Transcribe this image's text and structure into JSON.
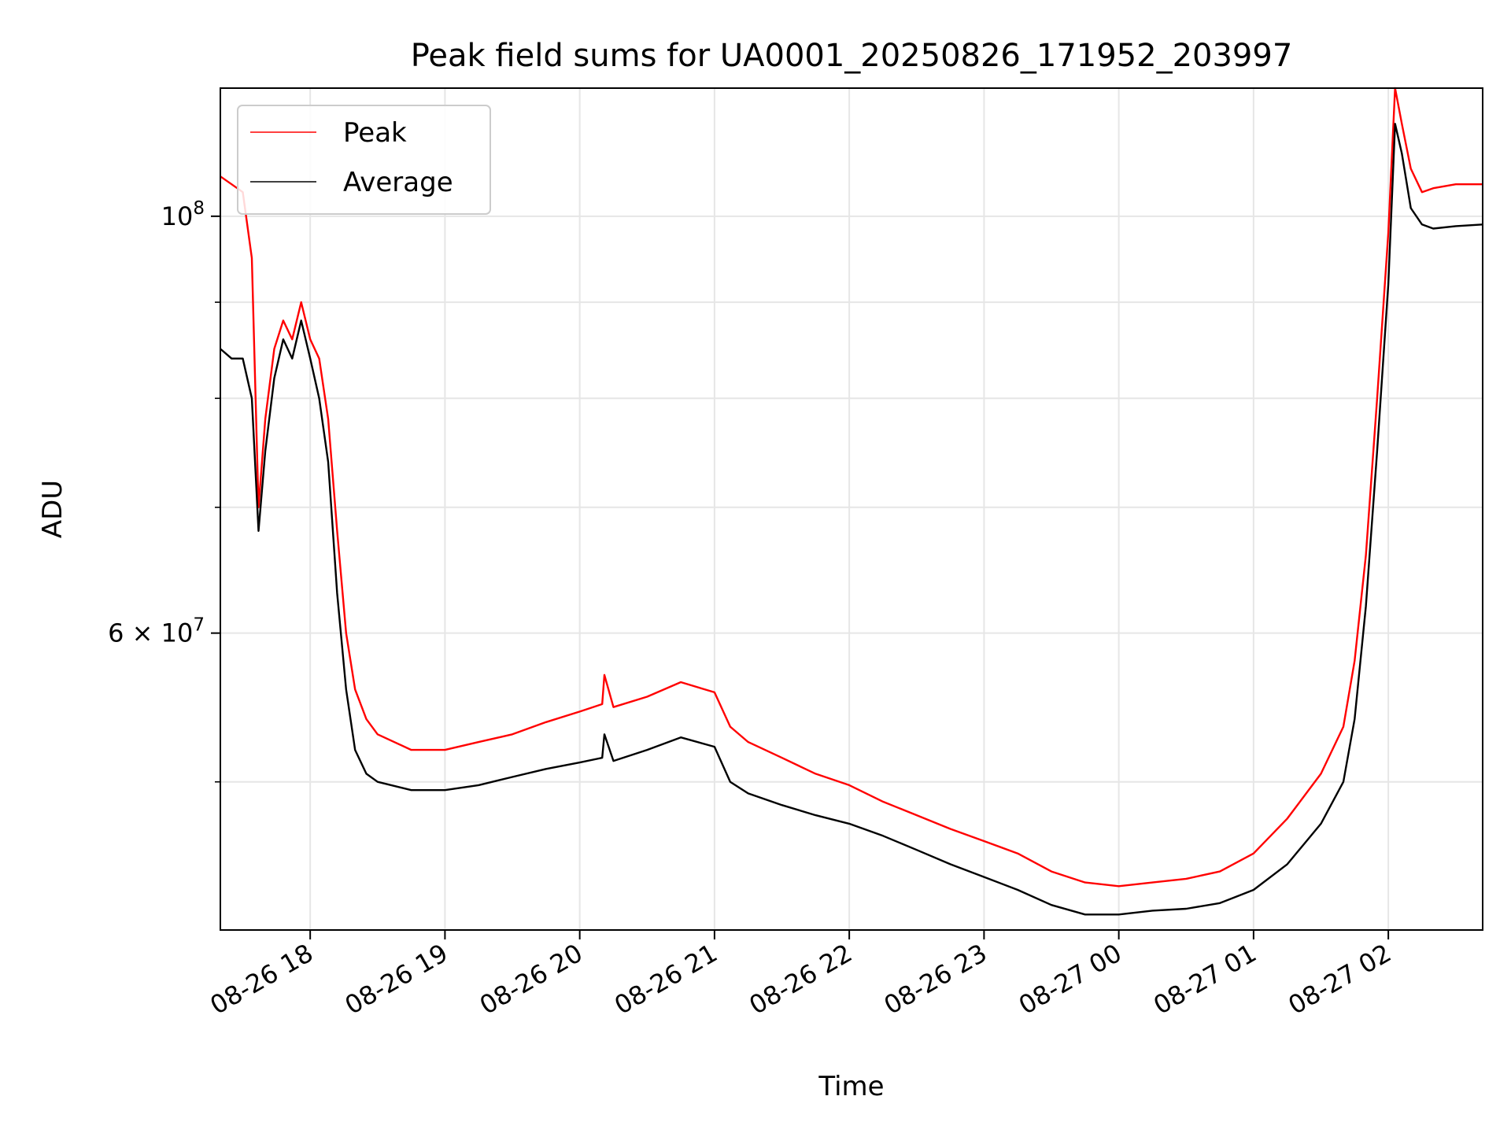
{
  "chart_data": {
    "type": "line",
    "title": "Peak field sums for UA0001_20250826_171952_203997",
    "xlabel": "Time",
    "ylabel": "ADU",
    "yscale": "log",
    "grid": true,
    "legend_position": "top-left",
    "xlim": [
      "2025-08-26 17:20",
      "2025-08-27 02:42"
    ],
    "ylim": [
      41700000,
      117000000
    ],
    "x_ticks": [
      {
        "t": "2025-08-26 18:00",
        "label": "08-26 18"
      },
      {
        "t": "2025-08-26 19:00",
        "label": "08-26 19"
      },
      {
        "t": "2025-08-26 20:00",
        "label": "08-26 20"
      },
      {
        "t": "2025-08-26 21:00",
        "label": "08-26 21"
      },
      {
        "t": "2025-08-26 22:00",
        "label": "08-26 22"
      },
      {
        "t": "2025-08-26 23:00",
        "label": "08-26 23"
      },
      {
        "t": "2025-08-27 00:00",
        "label": "08-27 00"
      },
      {
        "t": "2025-08-27 01:00",
        "label": "08-27 01"
      },
      {
        "t": "2025-08-27 02:00",
        "label": "08-27 02"
      }
    ],
    "y_major_ticks": [
      {
        "value": 100000000,
        "base": "10",
        "exp": "8"
      },
      {
        "value": 60000000,
        "base": "6 × 10",
        "exp": "7"
      }
    ],
    "y_minor_ticks": [
      50000000,
      70000000,
      80000000,
      90000000
    ],
    "series": [
      {
        "name": "Peak",
        "color": "#ff0000",
        "x": [
          "2025-08-26 17:20",
          "2025-08-26 17:25",
          "2025-08-26 17:30",
          "2025-08-26 17:34",
          "2025-08-26 17:37",
          "2025-08-26 17:40",
          "2025-08-26 17:44",
          "2025-08-26 17:48",
          "2025-08-26 17:52",
          "2025-08-26 17:56",
          "2025-08-26 18:00",
          "2025-08-26 18:04",
          "2025-08-26 18:08",
          "2025-08-26 18:12",
          "2025-08-26 18:16",
          "2025-08-26 18:20",
          "2025-08-26 18:25",
          "2025-08-26 18:30",
          "2025-08-26 18:45",
          "2025-08-26 19:00",
          "2025-08-26 19:15",
          "2025-08-26 19:30",
          "2025-08-26 19:45",
          "2025-08-26 20:00",
          "2025-08-26 20:10",
          "2025-08-26 20:11",
          "2025-08-26 20:15",
          "2025-08-26 20:30",
          "2025-08-26 20:45",
          "2025-08-26 21:00",
          "2025-08-26 21:07",
          "2025-08-26 21:15",
          "2025-08-26 21:30",
          "2025-08-26 21:45",
          "2025-08-26 22:00",
          "2025-08-26 22:15",
          "2025-08-26 22:30",
          "2025-08-26 22:45",
          "2025-08-26 23:00",
          "2025-08-26 23:15",
          "2025-08-26 23:30",
          "2025-08-26 23:45",
          "2025-08-27 00:00",
          "2025-08-27 00:15",
          "2025-08-27 00:30",
          "2025-08-27 00:45",
          "2025-08-27 01:00",
          "2025-08-27 01:15",
          "2025-08-27 01:30",
          "2025-08-27 01:40",
          "2025-08-27 01:45",
          "2025-08-27 01:50",
          "2025-08-27 01:55",
          "2025-08-27 02:00",
          "2025-08-27 02:03",
          "2025-08-27 02:06",
          "2025-08-27 02:10",
          "2025-08-27 02:15",
          "2025-08-27 02:20",
          "2025-08-27 02:30",
          "2025-08-27 02:42"
        ],
        "y": [
          105000000,
          104000000,
          103000000,
          95000000,
          70000000,
          78000000,
          85000000,
          88000000,
          86000000,
          90000000,
          86000000,
          84000000,
          78000000,
          68000000,
          60000000,
          56000000,
          54000000,
          53000000,
          52000000,
          52000000,
          52500000,
          53000000,
          53800000,
          54500000,
          55000000,
          57000000,
          54800000,
          55500000,
          56500000,
          55800000,
          53500000,
          52500000,
          51500000,
          50500000,
          49800000,
          48800000,
          48000000,
          47200000,
          46500000,
          45800000,
          44800000,
          44200000,
          44000000,
          44200000,
          44400000,
          44800000,
          45800000,
          47800000,
          50500000,
          53500000,
          58000000,
          66000000,
          80000000,
          98000000,
          117000000,
          112000000,
          106000000,
          103000000,
          103500000,
          104000000,
          104000000
        ]
      },
      {
        "name": "Average",
        "color": "#000000",
        "x": [
          "2025-08-26 17:20",
          "2025-08-26 17:25",
          "2025-08-26 17:30",
          "2025-08-26 17:34",
          "2025-08-26 17:37",
          "2025-08-26 17:40",
          "2025-08-26 17:44",
          "2025-08-26 17:48",
          "2025-08-26 17:52",
          "2025-08-26 17:56",
          "2025-08-26 18:00",
          "2025-08-26 18:04",
          "2025-08-26 18:08",
          "2025-08-26 18:12",
          "2025-08-26 18:16",
          "2025-08-26 18:20",
          "2025-08-26 18:25",
          "2025-08-26 18:30",
          "2025-08-26 18:45",
          "2025-08-26 19:00",
          "2025-08-26 19:15",
          "2025-08-26 19:30",
          "2025-08-26 19:45",
          "2025-08-26 20:00",
          "2025-08-26 20:10",
          "2025-08-26 20:11",
          "2025-08-26 20:15",
          "2025-08-26 20:30",
          "2025-08-26 20:45",
          "2025-08-26 21:00",
          "2025-08-26 21:07",
          "2025-08-26 21:15",
          "2025-08-26 21:30",
          "2025-08-26 21:45",
          "2025-08-26 22:00",
          "2025-08-26 22:15",
          "2025-08-26 22:30",
          "2025-08-26 22:45",
          "2025-08-26 23:00",
          "2025-08-26 23:15",
          "2025-08-26 23:30",
          "2025-08-26 23:45",
          "2025-08-27 00:00",
          "2025-08-27 00:15",
          "2025-08-27 00:30",
          "2025-08-27 00:45",
          "2025-08-27 01:00",
          "2025-08-27 01:15",
          "2025-08-27 01:30",
          "2025-08-27 01:40",
          "2025-08-27 01:45",
          "2025-08-27 01:50",
          "2025-08-27 01:55",
          "2025-08-27 02:00",
          "2025-08-27 02:03",
          "2025-08-27 02:06",
          "2025-08-27 02:10",
          "2025-08-27 02:15",
          "2025-08-27 02:20",
          "2025-08-27 02:30",
          "2025-08-27 02:42"
        ],
        "y": [
          85000000,
          84000000,
          84000000,
          80000000,
          68000000,
          75000000,
          82000000,
          86000000,
          84000000,
          88000000,
          84000000,
          80000000,
          74000000,
          63000000,
          56000000,
          52000000,
          50500000,
          50000000,
          49500000,
          49500000,
          49800000,
          50300000,
          50800000,
          51200000,
          51500000,
          53000000,
          51300000,
          52000000,
          52800000,
          52200000,
          50000000,
          49300000,
          48600000,
          48000000,
          47500000,
          46800000,
          46000000,
          45200000,
          44500000,
          43800000,
          43000000,
          42500000,
          42500000,
          42700000,
          42800000,
          43100000,
          43800000,
          45200000,
          47500000,
          50000000,
          54000000,
          62000000,
          75000000,
          92000000,
          112000000,
          108000000,
          101000000,
          99000000,
          98500000,
          98800000,
          99000000
        ]
      }
    ]
  }
}
